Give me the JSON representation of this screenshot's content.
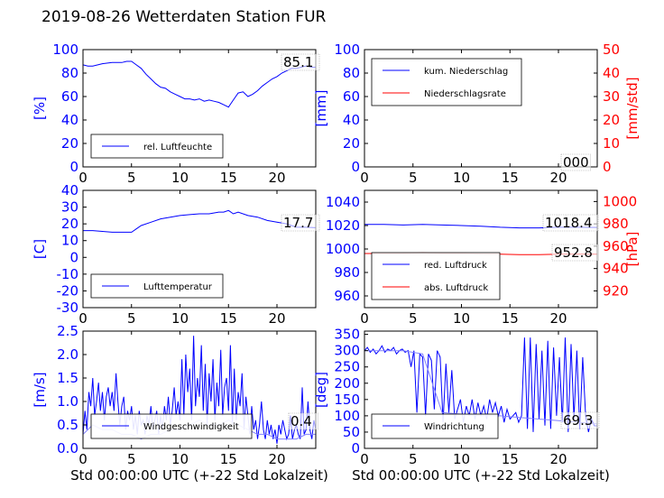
{
  "title": "2019-08-26 Wetterdaten Station FUR\u0004",
  "colors": {
    "primary": "#0000ff",
    "secondary": "#ff0000",
    "light": "#8080ff"
  },
  "xlabel": "Std 00:00:00 UTC (+-22 Std Lokalzeit)",
  "chart_data": [
    {
      "id": "humidity",
      "type": "line",
      "xlim": [
        0,
        24
      ],
      "ylim": [
        0,
        100
      ],
      "xticks": [
        0,
        5,
        10,
        15,
        20
      ],
      "yticks": [
        0,
        20,
        40,
        60,
        80,
        100
      ],
      "ylabel": "[%]",
      "xlabel": "",
      "current_value_label": "85.1",
      "legend": {
        "placement": "lower-left"
      },
      "series": [
        {
          "name": "rel. Luftfeuchte",
          "color": "#0000ff",
          "x": [
            0,
            0.5,
            1,
            2,
            3,
            4,
            4.5,
            5,
            5.5,
            6,
            6.5,
            7,
            7.5,
            8,
            8.5,
            9,
            9.5,
            10,
            10.5,
            11,
            11.5,
            12,
            12.5,
            13,
            13.5,
            14,
            14.5,
            15,
            15.5,
            16,
            16.5,
            17,
            17.5,
            18,
            18.5,
            19,
            19.5,
            20,
            20.5,
            21,
            21.5,
            22,
            22.5,
            23,
            23.5,
            24
          ],
          "y": [
            87,
            86,
            86,
            88,
            89,
            89,
            90,
            90,
            87,
            84,
            79,
            75,
            71,
            68,
            67,
            64,
            62,
            60,
            58,
            58,
            57,
            58,
            56,
            57,
            56,
            55,
            53,
            51,
            57,
            63,
            64,
            60,
            62,
            65,
            69,
            72,
            75,
            77,
            80,
            82,
            84,
            84,
            85,
            86,
            85,
            85
          ]
        }
      ]
    },
    {
      "id": "precip",
      "type": "line",
      "xlim": [
        0,
        24
      ],
      "ylim": [
        0,
        100
      ],
      "y2lim": [
        0,
        50
      ],
      "xticks": [
        0,
        5,
        10,
        15,
        20
      ],
      "yticks": [
        0,
        20,
        40,
        60,
        80,
        100
      ],
      "y2ticks": [
        0,
        10,
        20,
        30,
        40,
        50
      ],
      "ylabel": "[mm]",
      "y2label": "[mm/std]",
      "current_value_label": "000",
      "legend": {
        "placement": "top-left"
      },
      "series": [
        {
          "name": "kum. Niederschlag",
          "color": "#0000ff",
          "axis": "left",
          "x": [
            0,
            24
          ],
          "y": [
            0,
            0
          ]
        },
        {
          "name": "Niederschlagsrate",
          "color": "#ff0000",
          "axis": "right",
          "x": [
            0,
            24
          ],
          "y": [
            0,
            0
          ]
        }
      ]
    },
    {
      "id": "temperature",
      "type": "line",
      "xlim": [
        0,
        24
      ],
      "ylim": [
        -30,
        40
      ],
      "xticks": [
        0,
        5,
        10,
        15,
        20
      ],
      "yticks": [
        -30,
        -20,
        -10,
        0,
        10,
        20,
        30,
        40
      ],
      "ylabel": "[C]",
      "current_value_label": "17.7",
      "legend": {
        "placement": "lower-left"
      },
      "series": [
        {
          "name": "Lufttemperatur",
          "color": "#0000ff",
          "x": [
            0,
            1,
            2,
            3,
            4,
            5,
            5.5,
            6,
            7,
            8,
            9,
            10,
            11,
            12,
            13,
            14,
            14.5,
            15,
            15.5,
            16,
            17,
            18,
            19,
            20,
            21,
            22,
            23,
            24
          ],
          "y": [
            16,
            16,
            15.5,
            15,
            15,
            15,
            17,
            19,
            21,
            23,
            24,
            25,
            25.5,
            26,
            26,
            27,
            27,
            28,
            26,
            27,
            25,
            24,
            22,
            21,
            20,
            18,
            18,
            17.7
          ]
        }
      ]
    },
    {
      "id": "pressure",
      "type": "line",
      "xlim": [
        0,
        24
      ],
      "ylim": [
        950,
        1050
      ],
      "y2lim": [
        905,
        1010
      ],
      "xticks": [
        0,
        5,
        10,
        15,
        20
      ],
      "yticks": [
        960,
        980,
        1000,
        1020,
        1040
      ],
      "y2ticks": [
        920,
        940,
        960,
        980,
        1000
      ],
      "ylabel": "",
      "y2label": "[hPa]",
      "current_value_label": "1018.4",
      "current_value_label2": "952.8",
      "legend": {
        "placement": "lower-left"
      },
      "series": [
        {
          "name": "red. Luftdruck",
          "color": "#0000ff",
          "axis": "left",
          "x": [
            0,
            2,
            4,
            6,
            8,
            10,
            12,
            14,
            16,
            18,
            20,
            22,
            24
          ],
          "y": [
            1021,
            1021,
            1020.5,
            1021,
            1020.5,
            1020,
            1019.5,
            1018.5,
            1018,
            1018,
            1018.5,
            1018.5,
            1018.4
          ]
        },
        {
          "name": "abs. Luftdruck",
          "color": "#ff0000",
          "axis": "right",
          "x": [
            0,
            2,
            4,
            6,
            8,
            10,
            12,
            14,
            16,
            18,
            20,
            22,
            24
          ],
          "y": [
            953.5,
            953.5,
            953.5,
            954,
            953.5,
            953.5,
            953,
            952.8,
            952.5,
            952.5,
            952.8,
            952.8,
            952.8
          ]
        }
      ]
    },
    {
      "id": "wind_speed",
      "type": "line",
      "xlim": [
        0,
        24
      ],
      "ylim": [
        0,
        2.5
      ],
      "xticks": [
        0,
        5,
        10,
        15,
        20
      ],
      "yticks": [
        0.0,
        0.5,
        1.0,
        1.5,
        2.0,
        2.5
      ],
      "ylabel": "[m/s]",
      "current_value_label": "0.4",
      "legend": {
        "placement": "lower-left"
      },
      "series": [
        {
          "name": "Windgeschwindigkeit",
          "color": "#0000ff",
          "x": [
            0,
            0.2,
            0.4,
            0.6,
            0.8,
            1,
            1.2,
            1.4,
            1.6,
            1.8,
            2,
            2.2,
            2.4,
            2.6,
            2.8,
            3,
            3.2,
            3.4,
            3.6,
            3.8,
            4,
            4.2,
            4.4,
            4.6,
            4.8,
            5,
            5.2,
            5.4,
            5.6,
            5.8,
            6,
            6.2,
            6.4,
            6.6,
            6.8,
            7,
            7.2,
            7.4,
            7.6,
            7.8,
            8,
            8.2,
            8.4,
            8.6,
            8.8,
            9,
            9.2,
            9.4,
            9.6,
            9.8,
            10,
            10.2,
            10.4,
            10.6,
            10.8,
            11,
            11.2,
            11.4,
            11.6,
            11.8,
            12,
            12.2,
            12.4,
            12.6,
            12.8,
            13,
            13.2,
            13.4,
            13.6,
            13.8,
            14,
            14.2,
            14.4,
            14.6,
            14.8,
            15,
            15.2,
            15.4,
            15.6,
            15.8,
            16,
            16.2,
            16.4,
            16.6,
            16.8,
            17,
            17.2,
            17.4,
            17.6,
            17.8,
            18,
            18.2,
            18.4,
            18.6,
            18.8,
            19,
            19.2,
            19.4,
            19.6,
            19.8,
            20,
            20.2,
            20.4,
            20.6,
            20.8,
            21,
            21.2,
            21.4,
            21.6,
            21.8,
            22,
            22.2,
            22.4,
            22.6,
            22.8,
            23,
            23.2,
            23.4,
            23.6,
            23.8,
            24
          ],
          "y": [
            0.3,
            0.8,
            0.4,
            1.2,
            0.9,
            1.5,
            0.7,
            1.0,
            1.4,
            0.8,
            1.2,
            0.6,
            1.1,
            1.3,
            0.9,
            1.2,
            0.8,
            1.6,
            1.0,
            0.5,
            0.9,
            1.1,
            0.4,
            0.8,
            0.6,
            0.9,
            0.4,
            0.7,
            0.3,
            0.8,
            0.5,
            0.6,
            0.3,
            0.7,
            0.5,
            0.9,
            0.4,
            0.6,
            0.8,
            0.3,
            0.7,
            0.4,
            0.9,
            0.6,
            1.1,
            0.5,
            0.8,
            1.3,
            0.7,
            1.0,
            0.6,
            1.9,
            0.7,
            2.0,
            1.2,
            1.7,
            0.6,
            2.4,
            0.9,
            1.5,
            1.1,
            2.2,
            0.8,
            1.8,
            0.5,
            1.6,
            1.0,
            1.9,
            0.6,
            1.4,
            0.9,
            2.1,
            0.7,
            1.3,
            1.5,
            0.8,
            2.2,
            0.5,
            1.7,
            0.6,
            1.2,
            0.9,
            1.6,
            0.4,
            1.1,
            0.7,
            0.3,
            0.9,
            0.4,
            0.6,
            0.2,
            0.5,
            1.0,
            0.4,
            0.2,
            0.6,
            0.3,
            0.5,
            0.2,
            0.4,
            0.1,
            0.5,
            0.3,
            0.6,
            0.4,
            0.2,
            0.3,
            0.7,
            0.2,
            0.4,
            0.5,
            0.3,
            0.2,
            1.3,
            0.3,
            0.4,
            1.0,
            0.4,
            0.2,
            0.6,
            0.4
          ]
        },
        {
          "name": "",
          "color": "#8080ff",
          "x": [
            0,
            1,
            2,
            3,
            4,
            5,
            6,
            7,
            8,
            9,
            10,
            11,
            12,
            13,
            14,
            15,
            16,
            17,
            18,
            19,
            20,
            21,
            22,
            23,
            24
          ],
          "y": [
            0.3,
            0.5,
            0.4,
            0.4,
            0.3,
            0.3,
            0.2,
            0.3,
            0.3,
            0.4,
            0.4,
            0.5,
            0.6,
            0.5,
            0.5,
            0.6,
            0.5,
            0.4,
            0.3,
            0.3,
            0.2,
            0.2,
            0.2,
            0.3,
            0.3
          ]
        }
      ]
    },
    {
      "id": "wind_dir",
      "type": "line",
      "xlim": [
        0,
        24
      ],
      "ylim": [
        0,
        360
      ],
      "xticks": [
        0,
        5,
        10,
        15,
        20
      ],
      "yticks": [
        0,
        50,
        100,
        150,
        200,
        250,
        300,
        350
      ],
      "ylabel": "[deg]",
      "current_value_label": "69.3",
      "legend": {
        "placement": "lower-left"
      },
      "series": [
        {
          "name": "Windrichtung",
          "color": "#0000ff",
          "x": [
            0,
            0.3,
            0.6,
            0.9,
            1.2,
            1.5,
            1.8,
            2.1,
            2.4,
            2.7,
            3,
            3.3,
            3.6,
            3.9,
            4.2,
            4.5,
            4.8,
            5.1,
            5.4,
            5.7,
            6,
            6.3,
            6.6,
            6.9,
            7.2,
            7.5,
            7.8,
            8.1,
            8.4,
            8.7,
            9,
            9.3,
            9.6,
            9.9,
            10.2,
            10.5,
            10.8,
            11.1,
            11.4,
            11.7,
            12,
            12.3,
            12.6,
            12.9,
            13.2,
            13.5,
            13.8,
            14.1,
            14.4,
            14.7,
            15,
            15.3,
            15.6,
            15.9,
            16.2,
            16.5,
            16.8,
            17.1,
            17.4,
            17.7,
            18,
            18.3,
            18.6,
            18.9,
            19.2,
            19.5,
            19.8,
            20.1,
            20.4,
            20.7,
            21,
            21.3,
            21.6,
            21.9,
            22.2,
            22.5,
            22.8,
            23.1,
            23.4,
            23.7,
            24
          ],
          "y": [
            300,
            310,
            295,
            305,
            290,
            300,
            315,
            295,
            305,
            300,
            310,
            290,
            300,
            305,
            295,
            300,
            250,
            300,
            110,
            290,
            280,
            100,
            290,
            270,
            120,
            300,
            280,
            80,
            260,
            110,
            240,
            90,
            120,
            150,
            80,
            130,
            100,
            150,
            90,
            140,
            100,
            130,
            90,
            150,
            110,
            140,
            100,
            130,
            80,
            120,
            90,
            100,
            110,
            80,
            100,
            340,
            60,
            340,
            50,
            320,
            90,
            300,
            70,
            330,
            60,
            310,
            100,
            280,
            80,
            340,
            50,
            320,
            90,
            300,
            60,
            280,
            100,
            50,
            90,
            69.3,
            69.3
          ]
        },
        {
          "name": "",
          "color": "#8080ff",
          "x": [
            0,
            2,
            4,
            6,
            8,
            10,
            12,
            14,
            16,
            18,
            20,
            22,
            24
          ],
          "y": [
            300,
            300,
            300,
            290,
            110,
            105,
            100,
            100,
            95,
            90,
            85,
            80,
            75
          ]
        }
      ]
    }
  ]
}
